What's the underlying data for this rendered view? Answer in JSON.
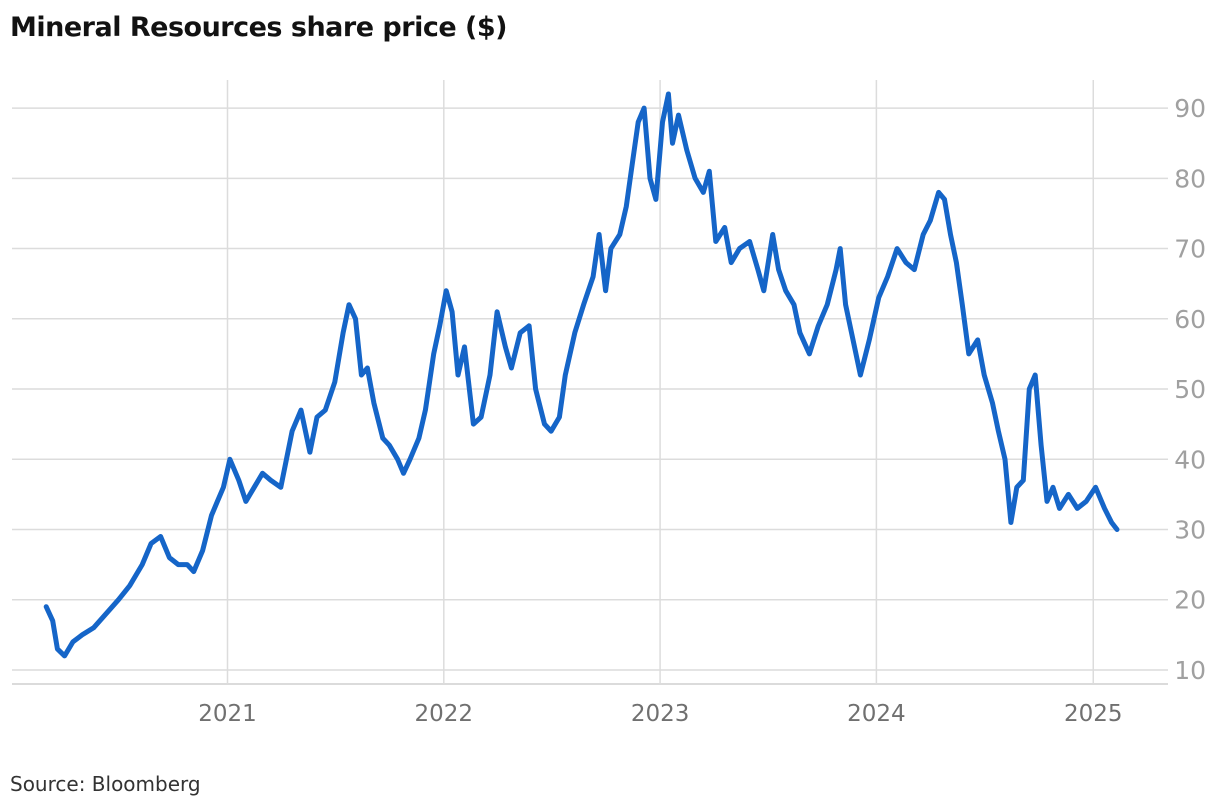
{
  "title": "Mineral Resources share price ($)",
  "source": "Source: Bloomberg",
  "colors": {
    "line": "#1565c8",
    "grid": "#dcdcdc",
    "axis_text": "#a0a0a0"
  },
  "chart_data": {
    "type": "line",
    "title": "Mineral Resources share price ($)",
    "xlabel": "",
    "ylabel": "",
    "x_ticks": [
      "2021",
      "2022",
      "2023",
      "2024",
      "2025"
    ],
    "y_ticks": [
      10,
      20,
      30,
      40,
      50,
      60,
      70,
      80,
      90
    ],
    "ylim": [
      8,
      94
    ],
    "xlim": [
      "2020-02-01",
      "2025-03-31"
    ],
    "y_axis_position": "right",
    "grid": true,
    "series": [
      {
        "points": [
          [
            "2020-03-01",
            19
          ],
          [
            "2020-03-12",
            17
          ],
          [
            "2020-03-20",
            13
          ],
          [
            "2020-04-01",
            12
          ],
          [
            "2020-04-15",
            14
          ],
          [
            "2020-05-01",
            15
          ],
          [
            "2020-05-20",
            16
          ],
          [
            "2020-06-10",
            18
          ],
          [
            "2020-07-01",
            20
          ],
          [
            "2020-07-20",
            22
          ],
          [
            "2020-08-10",
            25
          ],
          [
            "2020-08-25",
            28
          ],
          [
            "2020-09-10",
            29
          ],
          [
            "2020-09-25",
            26
          ],
          [
            "2020-10-10",
            25
          ],
          [
            "2020-10-25",
            25
          ],
          [
            "2020-11-05",
            24
          ],
          [
            "2020-11-20",
            27
          ],
          [
            "2020-12-05",
            32
          ],
          [
            "2020-12-15",
            34
          ],
          [
            "2020-12-25",
            36
          ],
          [
            "2021-01-05",
            40
          ],
          [
            "2021-01-20",
            37
          ],
          [
            "2021-02-01",
            34
          ],
          [
            "2021-02-15",
            36
          ],
          [
            "2021-03-01",
            38
          ],
          [
            "2021-03-15",
            37
          ],
          [
            "2021-04-01",
            36
          ],
          [
            "2021-04-20",
            44
          ],
          [
            "2021-05-05",
            47
          ],
          [
            "2021-05-20",
            41
          ],
          [
            "2021-06-01",
            46
          ],
          [
            "2021-06-15",
            47
          ],
          [
            "2021-07-01",
            51
          ],
          [
            "2021-07-15",
            58
          ],
          [
            "2021-07-25",
            62
          ],
          [
            "2021-08-05",
            60
          ],
          [
            "2021-08-15",
            52
          ],
          [
            "2021-08-25",
            53
          ],
          [
            "2021-09-05",
            48
          ],
          [
            "2021-09-20",
            43
          ],
          [
            "2021-10-01",
            42
          ],
          [
            "2021-10-15",
            40
          ],
          [
            "2021-10-25",
            38
          ],
          [
            "2021-11-05",
            40
          ],
          [
            "2021-11-20",
            43
          ],
          [
            "2021-12-01",
            47
          ],
          [
            "2021-12-15",
            55
          ],
          [
            "2021-12-25",
            59
          ],
          [
            "2022-01-05",
            64
          ],
          [
            "2022-01-15",
            61
          ],
          [
            "2022-01-25",
            52
          ],
          [
            "2022-02-05",
            56
          ],
          [
            "2022-02-20",
            45
          ],
          [
            "2022-03-05",
            46
          ],
          [
            "2022-03-20",
            52
          ],
          [
            "2022-04-01",
            61
          ],
          [
            "2022-04-15",
            56
          ],
          [
            "2022-04-25",
            53
          ],
          [
            "2022-05-10",
            58
          ],
          [
            "2022-05-25",
            59
          ],
          [
            "2022-06-05",
            50
          ],
          [
            "2022-06-20",
            45
          ],
          [
            "2022-07-01",
            44
          ],
          [
            "2022-07-15",
            46
          ],
          [
            "2022-07-25",
            52
          ],
          [
            "2022-08-10",
            58
          ],
          [
            "2022-08-25",
            62
          ],
          [
            "2022-09-10",
            66
          ],
          [
            "2022-09-20",
            72
          ],
          [
            "2022-10-01",
            64
          ],
          [
            "2022-10-10",
            70
          ],
          [
            "2022-10-25",
            72
          ],
          [
            "2022-11-05",
            76
          ],
          [
            "2022-11-15",
            82
          ],
          [
            "2022-11-25",
            88
          ],
          [
            "2022-12-05",
            90
          ],
          [
            "2022-12-15",
            80
          ],
          [
            "2022-12-25",
            77
          ],
          [
            "2023-01-05",
            88
          ],
          [
            "2023-01-15",
            92
          ],
          [
            "2023-01-22",
            85
          ],
          [
            "2023-02-01",
            89
          ],
          [
            "2023-02-15",
            84
          ],
          [
            "2023-03-01",
            80
          ],
          [
            "2023-03-15",
            78
          ],
          [
            "2023-03-25",
            81
          ],
          [
            "2023-04-05",
            71
          ],
          [
            "2023-04-20",
            73
          ],
          [
            "2023-05-01",
            68
          ],
          [
            "2023-05-15",
            70
          ],
          [
            "2023-06-01",
            71
          ],
          [
            "2023-06-15",
            67
          ],
          [
            "2023-06-25",
            64
          ],
          [
            "2023-07-10",
            72
          ],
          [
            "2023-07-20",
            67
          ],
          [
            "2023-08-01",
            64
          ],
          [
            "2023-08-15",
            62
          ],
          [
            "2023-08-25",
            58
          ],
          [
            "2023-09-10",
            55
          ],
          [
            "2023-09-25",
            59
          ],
          [
            "2023-10-10",
            62
          ],
          [
            "2023-10-25",
            67
          ],
          [
            "2023-11-01",
            70
          ],
          [
            "2023-11-10",
            62
          ],
          [
            "2023-11-25",
            56
          ],
          [
            "2023-12-05",
            52
          ],
          [
            "2023-12-20",
            57
          ],
          [
            "2024-01-05",
            63
          ],
          [
            "2024-01-20",
            66
          ],
          [
            "2024-02-05",
            70
          ],
          [
            "2024-02-20",
            68
          ],
          [
            "2024-03-05",
            67
          ],
          [
            "2024-03-20",
            72
          ],
          [
            "2024-04-01",
            74
          ],
          [
            "2024-04-15",
            78
          ],
          [
            "2024-04-25",
            77
          ],
          [
            "2024-05-05",
            72
          ],
          [
            "2024-05-15",
            68
          ],
          [
            "2024-05-25",
            62
          ],
          [
            "2024-06-05",
            55
          ],
          [
            "2024-06-20",
            57
          ],
          [
            "2024-07-01",
            52
          ],
          [
            "2024-07-15",
            48
          ],
          [
            "2024-07-25",
            44
          ],
          [
            "2024-08-05",
            40
          ],
          [
            "2024-08-15",
            31
          ],
          [
            "2024-08-25",
            36
          ],
          [
            "2024-09-05",
            37
          ],
          [
            "2024-09-15",
            50
          ],
          [
            "2024-09-25",
            52
          ],
          [
            "2024-10-05",
            42
          ],
          [
            "2024-10-15",
            34
          ],
          [
            "2024-10-25",
            36
          ],
          [
            "2024-11-05",
            33
          ],
          [
            "2024-11-20",
            35
          ],
          [
            "2024-12-05",
            33
          ],
          [
            "2024-12-20",
            34
          ],
          [
            "2025-01-05",
            36
          ],
          [
            "2025-01-20",
            33
          ],
          [
            "2025-02-01",
            31
          ],
          [
            "2025-02-10",
            30
          ]
        ]
      }
    ]
  }
}
